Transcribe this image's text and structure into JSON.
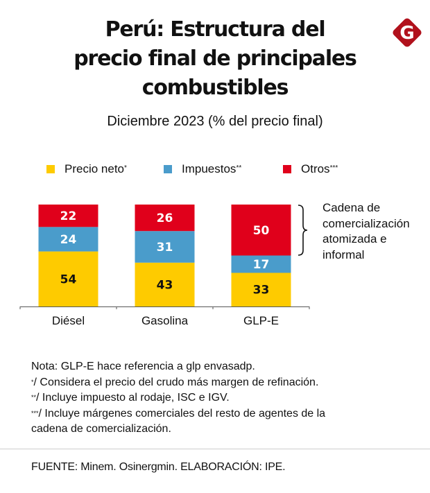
{
  "title_lines": [
    "Perú: Estructura del",
    "precio final de principales",
    "combustibles"
  ],
  "subtitle": "Diciembre 2023 (% del precio final)",
  "logo": {
    "icon": "g-diamond-logo-icon",
    "letter": "G",
    "color": "#b1111c"
  },
  "legend": [
    {
      "label": "Precio neto",
      "marker": "*",
      "color": "#fecb00"
    },
    {
      "label": "Impuestos",
      "marker": "**",
      "color": "#4a9ccb"
    },
    {
      "label": "Otros",
      "marker": "***",
      "color": "#e0001b"
    }
  ],
  "chart_data": {
    "type": "bar",
    "stacked": true,
    "title": "Perú: Estructura del precio final de principales combustibles",
    "subtitle": "Diciembre 2023 (% del precio final)",
    "xlabel": "",
    "ylabel": "",
    "ylim": [
      0,
      100
    ],
    "grid": false,
    "legend_position": "top",
    "categories": [
      "Diésel",
      "Gasolina",
      "GLP-E"
    ],
    "series": [
      {
        "name": "Precio neto*",
        "color": "#fecb00",
        "label_color": "#111111",
        "values": [
          54,
          43,
          33
        ]
      },
      {
        "name": "Impuestos**",
        "color": "#4a9ccb",
        "label_color": "#ffffff",
        "values": [
          24,
          31,
          17
        ]
      },
      {
        "name": "Otros***",
        "color": "#e0001b",
        "label_color": "#ffffff",
        "values": [
          22,
          26,
          50
        ]
      }
    ],
    "annotation": {
      "target": "GLP-E Otros",
      "text": "Cadena de comercialización atomizada e informal"
    }
  },
  "annotation_lines": [
    "Cadena de",
    "comercialización",
    "atomizada e",
    "informal"
  ],
  "notes": [
    {
      "marker": "",
      "text": "Nota: GLP-E hace referencia a glp envasadp."
    },
    {
      "marker": "*",
      "text": "/ Considera el precio del crudo más margen de refinación."
    },
    {
      "marker": "**",
      "text": "/ Incluye impuesto al rodaje, ISC e IGV."
    },
    {
      "marker": "***",
      "text": "/ Incluye márgenes comerciales del resto de agentes de la"
    },
    {
      "marker": "",
      "text": "cadena de comercialización."
    }
  ],
  "source": "FUENTE: Minem. Osinergmin. ELABORACIÓN: IPE."
}
